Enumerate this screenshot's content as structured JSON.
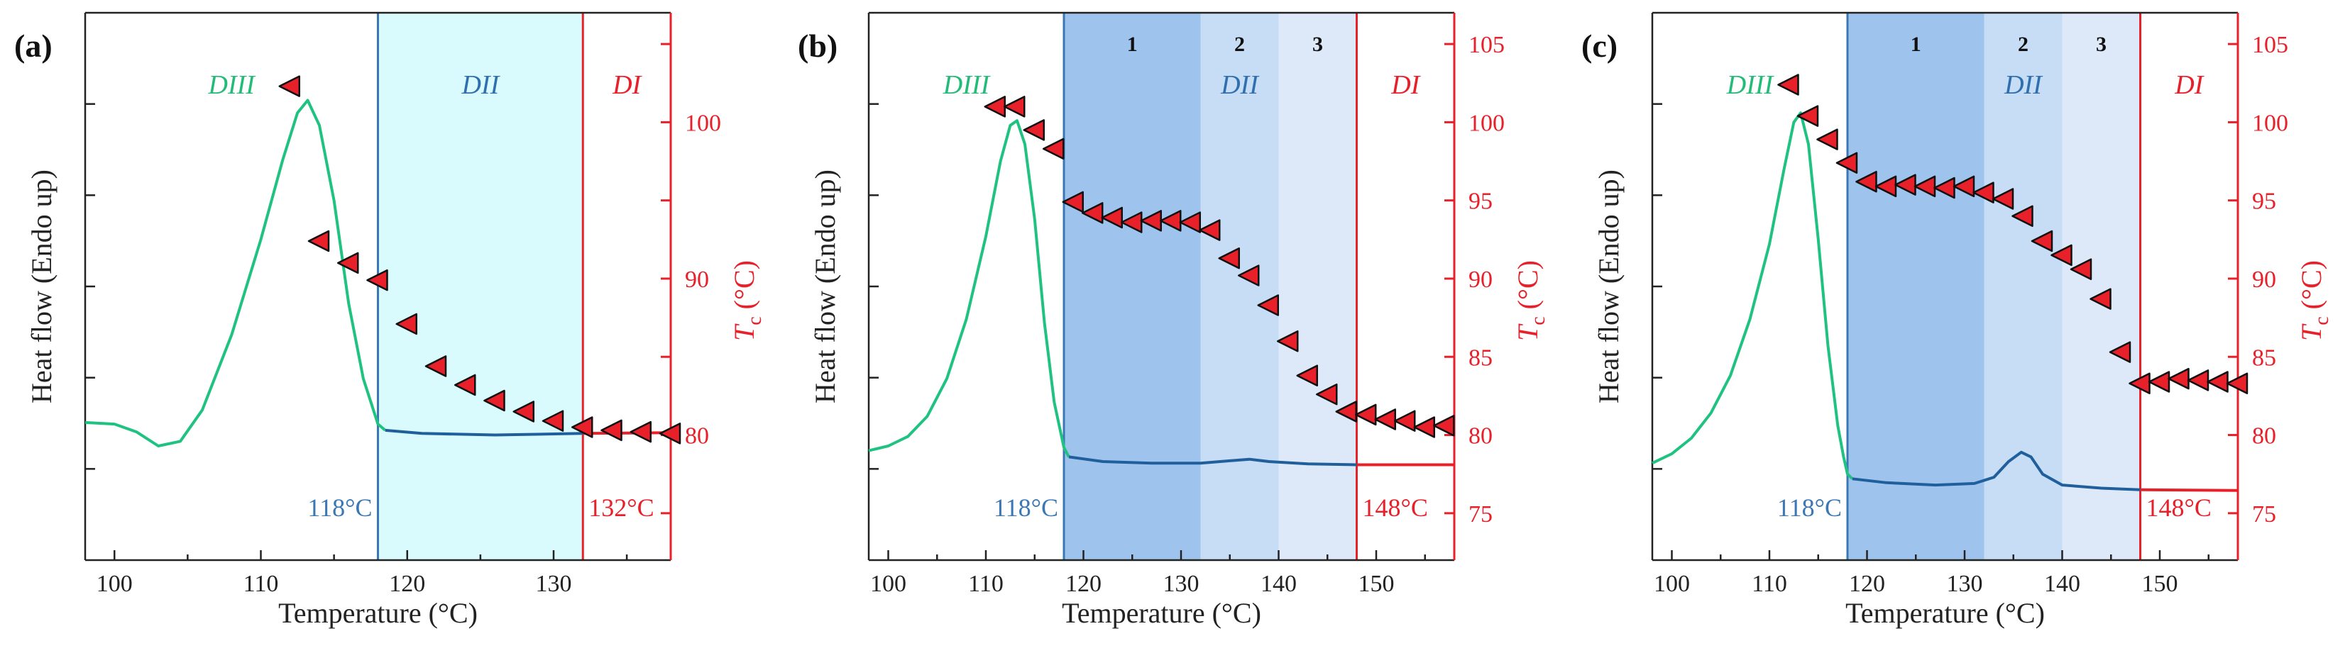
{
  "chart_data": [
    {
      "type": "scatter",
      "panel_label": "(a)",
      "xlabel": "Temperature (°C)",
      "ylabel_left": "Heat flow (Endo up)",
      "ylabel_right_main": "T",
      "ylabel_right_sub": "c",
      "ylabel_right_unit": " (°C)",
      "xlim": [
        98,
        138
      ],
      "xticks": [
        100,
        110,
        120,
        130
      ],
      "ylim_right": [
        72,
        107
      ],
      "yticks_right": [
        80,
        90,
        100
      ],
      "left_ticks": 5,
      "regions": [
        {
          "name": "DIII",
          "x0": 98,
          "x1": 118,
          "color": "#ffffff",
          "label_x": 108,
          "label_color": "#22bb77"
        },
        {
          "name": "DII",
          "x0": 118,
          "x1": 132,
          "color": "#d9fbfd",
          "label_x": 125,
          "label_color": "#2f6fb0"
        }
      ],
      "subregions": [],
      "region_DI": {
        "name": "DI",
        "x0": 132,
        "label_x": 135,
        "label_color": "#e8202a"
      },
      "boundary_lines": [
        {
          "x": 118,
          "color": "#3a78b5",
          "label": "118°C"
        },
        {
          "x": 132,
          "color": "#e8202a",
          "label": "132°C"
        }
      ],
      "series": [
        {
          "name": "Tc",
          "color": "#e8202a",
          "x": [
            112,
            114,
            116,
            118,
            120,
            122,
            124,
            126,
            128,
            130,
            132,
            134,
            136,
            138
          ],
          "y": [
            102.3,
            92.4,
            91.0,
            89.9,
            87.1,
            84.4,
            83.2,
            82.2,
            81.5,
            80.9,
            80.5,
            80.3,
            80.2,
            80.1
          ]
        }
      ],
      "dsc": {
        "green": [
          [
            98,
            80.8
          ],
          [
            100,
            80.7
          ],
          [
            101.5,
            80.2
          ],
          [
            103,
            79.3
          ],
          [
            104.5,
            79.6
          ],
          [
            106,
            81.6
          ],
          [
            108,
            86.4
          ],
          [
            110,
            92.5
          ],
          [
            111.5,
            97.6
          ],
          [
            112.5,
            100.6
          ],
          [
            113.2,
            101.4
          ],
          [
            114,
            99.8
          ],
          [
            115,
            95.0
          ],
          [
            116,
            88.4
          ],
          [
            117,
            83.6
          ],
          [
            118,
            80.7
          ],
          [
            118.5,
            80.3
          ]
        ],
        "blue": [
          [
            118.5,
            80.3
          ],
          [
            121,
            80.1
          ],
          [
            126,
            80.0
          ],
          [
            132,
            80.1
          ]
        ],
        "red": [
          [
            132,
            80.1
          ],
          [
            138,
            80.15
          ]
        ]
      }
    },
    {
      "type": "scatter",
      "panel_label": "(b)",
      "xlabel": "Temperature (°C)",
      "ylabel_left": "Heat flow (Endo up)",
      "ylabel_right_main": "T",
      "ylabel_right_sub": "c",
      "ylabel_right_unit": " (°C)",
      "xlim": [
        98,
        158
      ],
      "xticks": [
        100,
        110,
        120,
        130,
        140,
        150
      ],
      "ylim_right": [
        72,
        107
      ],
      "yticks_right": [
        75,
        80,
        85,
        90,
        95,
        100,
        105
      ],
      "left_ticks": 5,
      "regions": [
        {
          "name": "DIII",
          "x0": 98,
          "x1": 118,
          "color": "#ffffff",
          "label_x": 108,
          "label_color": "#22bb77"
        },
        {
          "name": "DII",
          "x0": 118,
          "x1": 148,
          "color": "none",
          "label_x": 136,
          "label_color": "#2f6fb0"
        }
      ],
      "subregions": [
        {
          "label": "1",
          "x0": 118,
          "x1": 132,
          "color": "#9ec4ee"
        },
        {
          "label": "2",
          "x0": 132,
          "x1": 140,
          "color": "#c7dcf5"
        },
        {
          "label": "3",
          "x0": 140,
          "x1": 148,
          "color": "#dde9f9"
        }
      ],
      "region_DI": {
        "name": "DI",
        "x0": 148,
        "label_x": 153,
        "label_color": "#e8202a"
      },
      "boundary_lines": [
        {
          "x": 118,
          "color": "#3a78b5",
          "label": "118°C"
        },
        {
          "x": 148,
          "color": "#e8202a",
          "label": "148°C"
        }
      ],
      "series": [
        {
          "name": "Tc",
          "color": "#e8202a",
          "x": [
            111,
            113,
            115,
            117,
            119,
            121,
            123,
            125,
            127,
            129,
            131,
            133,
            135,
            137,
            139,
            141,
            143,
            145,
            147,
            149,
            151,
            153,
            155,
            157
          ],
          "y": [
            101.0,
            101.0,
            99.5,
            98.3,
            94.9,
            94.2,
            93.9,
            93.6,
            93.7,
            93.7,
            93.6,
            93.1,
            91.3,
            90.2,
            88.3,
            86.0,
            83.8,
            82.6,
            81.5,
            81.3,
            81.0,
            80.9,
            80.5,
            80.6
          ]
        }
      ],
      "dsc": {
        "green": [
          [
            98,
            79.0
          ],
          [
            100,
            79.3
          ],
          [
            102,
            79.9
          ],
          [
            104,
            81.2
          ],
          [
            106,
            83.6
          ],
          [
            108,
            87.4
          ],
          [
            110,
            92.7
          ],
          [
            111.5,
            97.5
          ],
          [
            112.5,
            99.8
          ],
          [
            113.2,
            100.1
          ],
          [
            114,
            98.6
          ],
          [
            115,
            93.8
          ],
          [
            116,
            87.2
          ],
          [
            117,
            82.1
          ],
          [
            118,
            79.2
          ],
          [
            118.5,
            78.6
          ]
        ],
        "blue": [
          [
            118.5,
            78.6
          ],
          [
            122,
            78.3
          ],
          [
            127,
            78.2
          ],
          [
            132,
            78.2
          ],
          [
            135,
            78.35
          ],
          [
            137,
            78.45
          ],
          [
            139,
            78.3
          ],
          [
            143,
            78.15
          ],
          [
            148,
            78.1
          ]
        ],
        "red": [
          [
            148,
            78.1
          ],
          [
            158,
            78.1
          ]
        ]
      }
    },
    {
      "type": "scatter",
      "panel_label": "(c)",
      "xlabel": "Temperature (°C)",
      "ylabel_left": "Heat flow (Endo up)",
      "ylabel_right_main": "T",
      "ylabel_right_sub": "c",
      "ylabel_right_unit": " (°C)",
      "xlim": [
        98,
        158
      ],
      "xticks": [
        100,
        110,
        120,
        130,
        140,
        150
      ],
      "ylim_right": [
        72,
        107
      ],
      "yticks_right": [
        75,
        80,
        85,
        90,
        95,
        100,
        105
      ],
      "left_ticks": 5,
      "regions": [
        {
          "name": "DIII",
          "x0": 98,
          "x1": 118,
          "color": "#ffffff",
          "label_x": 108,
          "label_color": "#22bb77"
        },
        {
          "name": "DII",
          "x0": 118,
          "x1": 148,
          "color": "none",
          "label_x": 136,
          "label_color": "#2f6fb0"
        }
      ],
      "subregions": [
        {
          "label": "1",
          "x0": 118,
          "x1": 132,
          "color": "#9ec4ee"
        },
        {
          "label": "2",
          "x0": 132,
          "x1": 140,
          "color": "#c7dcf5"
        },
        {
          "label": "3",
          "x0": 140,
          "x1": 148,
          "color": "#dde9f9"
        }
      ],
      "region_DI": {
        "name": "DI",
        "x0": 148,
        "label_x": 153,
        "label_color": "#e8202a"
      },
      "boundary_lines": [
        {
          "x": 118,
          "color": "#3a78b5",
          "label": "118°C"
        },
        {
          "x": 148,
          "color": "#e8202a",
          "label": "148°C"
        }
      ],
      "series": [
        {
          "name": "Tc",
          "color": "#e8202a",
          "x": [
            112,
            114,
            116,
            118,
            120,
            122,
            124,
            126,
            128,
            130,
            132,
            134,
            136,
            138,
            140,
            142,
            144,
            146,
            148,
            150,
            152,
            154,
            156,
            158
          ],
          "y": [
            102.4,
            100.4,
            98.9,
            97.4,
            96.2,
            95.9,
            96.0,
            95.9,
            95.8,
            95.9,
            95.5,
            95.1,
            94.0,
            92.4,
            91.5,
            90.6,
            88.7,
            85.3,
            83.3,
            83.4,
            83.6,
            83.5,
            83.4,
            83.3
          ]
        }
      ],
      "dsc": {
        "green": [
          [
            98,
            78.2
          ],
          [
            100,
            78.8
          ],
          [
            102,
            79.8
          ],
          [
            104,
            81.4
          ],
          [
            106,
            83.8
          ],
          [
            108,
            87.4
          ],
          [
            110,
            92.2
          ],
          [
            111.5,
            97.0
          ],
          [
            112.5,
            100.0
          ],
          [
            113.2,
            100.6
          ],
          [
            114,
            98.6
          ],
          [
            115,
            92.5
          ],
          [
            116,
            85.7
          ],
          [
            117,
            80.6
          ],
          [
            117.6,
            78.6
          ],
          [
            118,
            77.5
          ],
          [
            118.5,
            77.2
          ]
        ],
        "blue": [
          [
            118.5,
            77.2
          ],
          [
            122,
            76.95
          ],
          [
            127,
            76.8
          ],
          [
            131,
            76.9
          ],
          [
            133,
            77.3
          ],
          [
            134.5,
            78.3
          ],
          [
            135.8,
            78.9
          ],
          [
            136.8,
            78.6
          ],
          [
            138,
            77.5
          ],
          [
            140,
            76.8
          ],
          [
            144,
            76.6
          ],
          [
            148,
            76.5
          ]
        ],
        "red": [
          [
            148,
            76.5
          ],
          [
            158,
            76.45
          ]
        ]
      }
    }
  ]
}
